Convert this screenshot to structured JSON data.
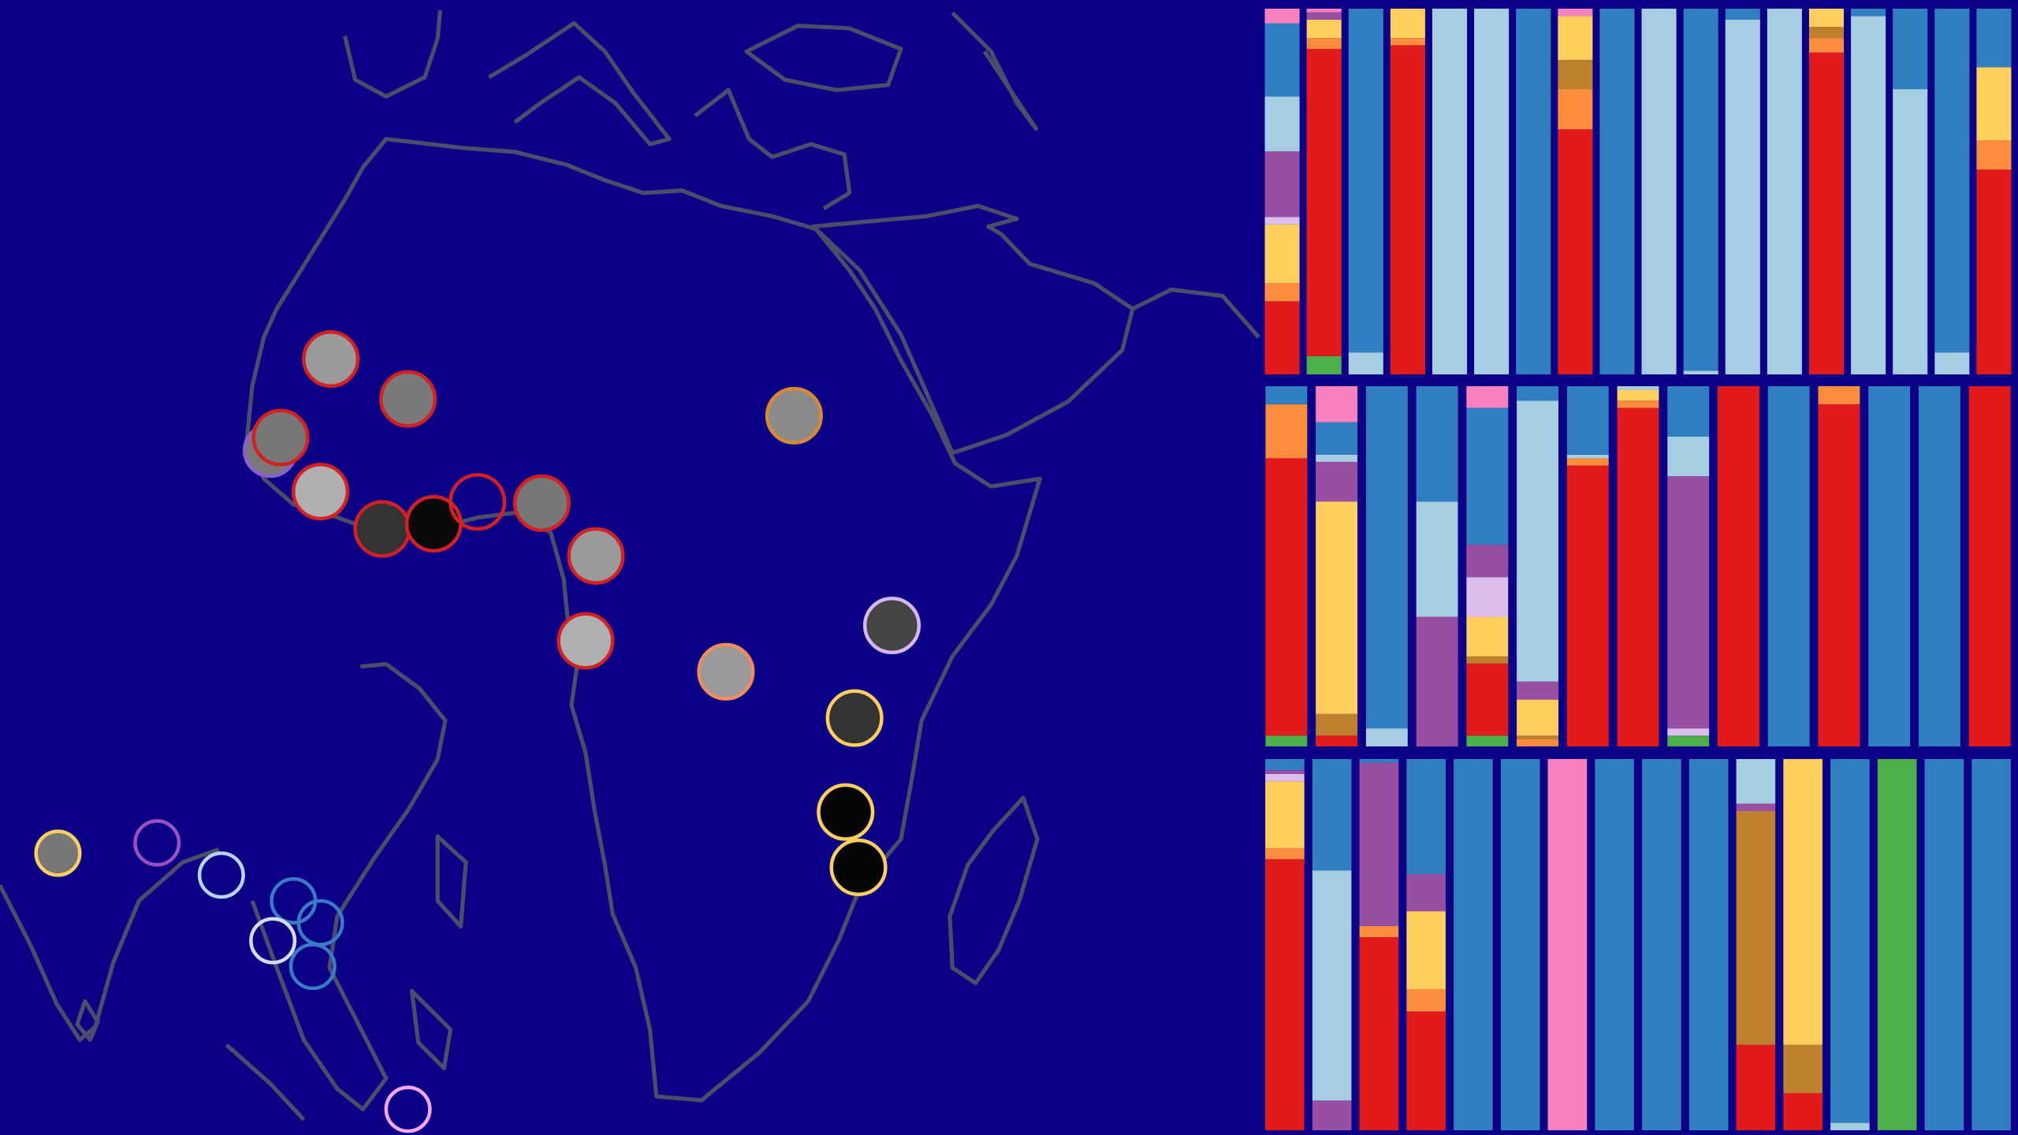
{
  "chart_data": [
    {
      "type": "bar",
      "stacked": true,
      "ylim": [
        0,
        100
      ],
      "categories": [
        null,
        null,
        null,
        null,
        null,
        null,
        null,
        null,
        null,
        null,
        null,
        null,
        null,
        null,
        null,
        null,
        null,
        null
      ],
      "series": [
        {
          "color": "#4daf4a",
          "values": [
            0,
            5,
            0,
            0,
            0,
            0,
            0,
            0,
            0,
            0,
            0,
            0,
            0,
            0,
            0,
            0,
            0,
            0
          ]
        },
        {
          "color": "#e31a1c",
          "values": [
            20,
            84,
            0,
            90,
            0,
            0,
            0,
            67,
            0,
            0,
            0,
            0,
            0,
            88,
            0,
            0,
            0,
            56
          ]
        },
        {
          "color": "#fd8d3c",
          "values": [
            5,
            3,
            0,
            2,
            0,
            0,
            0,
            11,
            0,
            0,
            0,
            0,
            0,
            4,
            0,
            0,
            0,
            8
          ]
        },
        {
          "color": "#bf812d",
          "values": [
            0,
            0,
            0,
            0,
            0,
            0,
            0,
            8,
            0,
            0,
            0,
            0,
            0,
            3,
            0,
            0,
            0,
            0
          ]
        },
        {
          "color": "#fecf5c",
          "values": [
            16,
            5,
            0,
            8,
            0,
            0,
            0,
            12,
            0,
            0,
            0,
            0,
            0,
            5,
            0,
            0,
            0,
            20
          ]
        },
        {
          "color": "#dcbfec",
          "values": [
            2,
            0,
            0,
            0,
            0,
            0,
            0,
            0,
            0,
            0,
            0,
            0,
            0,
            0,
            0,
            0,
            0,
            0
          ]
        },
        {
          "color": "#984ea3",
          "values": [
            18,
            2,
            0,
            0,
            0,
            0,
            0,
            0,
            0,
            0,
            0,
            0,
            0,
            0,
            0,
            0,
            0,
            0
          ]
        },
        {
          "color": "#a6cee3",
          "values": [
            15,
            0,
            6,
            0,
            100,
            100,
            0,
            0,
            0,
            100,
            1,
            97,
            100,
            0,
            98,
            78,
            6,
            0
          ]
        },
        {
          "color": "#2f7fc1",
          "values": [
            20,
            0,
            94,
            0,
            0,
            0,
            100,
            0,
            100,
            0,
            99,
            3,
            0,
            0,
            2,
            22,
            94,
            16
          ]
        },
        {
          "color": "#f781bf",
          "values": [
            4,
            1,
            0,
            0,
            0,
            0,
            0,
            2,
            0,
            0,
            0,
            0,
            0,
            0,
            0,
            0,
            0,
            0
          ]
        }
      ]
    },
    {
      "type": "bar",
      "stacked": true,
      "ylim": [
        0,
        100
      ],
      "categories": [
        null,
        null,
        null,
        null,
        null,
        null,
        null,
        null,
        null,
        null,
        null,
        null,
        null,
        null,
        null
      ],
      "series": [
        {
          "color": "#4daf4a",
          "values": [
            3,
            0,
            0,
            0,
            3,
            0,
            0,
            0,
            3,
            0,
            0,
            0,
            0,
            0,
            0
          ]
        },
        {
          "color": "#e31a1c",
          "values": [
            77,
            3,
            0,
            0,
            20,
            0,
            78,
            94,
            0,
            100,
            0,
            95,
            0,
            0,
            100
          ]
        },
        {
          "color": "#fd8d3c",
          "values": [
            15,
            0,
            0,
            0,
            0,
            2,
            2,
            2,
            0,
            0,
            0,
            5,
            0,
            0,
            0
          ]
        },
        {
          "color": "#bf812d",
          "values": [
            0,
            6,
            0,
            0,
            2,
            1,
            0,
            0,
            0,
            0,
            0,
            0,
            0,
            0,
            0
          ]
        },
        {
          "color": "#fecf5c",
          "values": [
            0,
            59,
            0,
            0,
            11,
            10,
            0,
            3,
            0,
            0,
            0,
            0,
            0,
            0,
            0
          ]
        },
        {
          "color": "#dcbfec",
          "values": [
            0,
            0,
            0,
            0,
            11,
            0,
            0,
            0,
            2,
            0,
            0,
            0,
            0,
            0,
            0
          ]
        },
        {
          "color": "#984ea3",
          "values": [
            0,
            11,
            0,
            36,
            9,
            5,
            0,
            0,
            70,
            0,
            0,
            0,
            0,
            0,
            0
          ]
        },
        {
          "color": "#a6cee3",
          "values": [
            0,
            2,
            5,
            32,
            0,
            78,
            1,
            1,
            11,
            0,
            0,
            0,
            0,
            0,
            0
          ]
        },
        {
          "color": "#2f7fc1",
          "values": [
            5,
            9,
            95,
            32,
            38,
            4,
            19,
            0,
            14,
            0,
            100,
            0,
            100,
            100,
            0
          ]
        },
        {
          "color": "#f781bf",
          "values": [
            0,
            10,
            0,
            0,
            6,
            0,
            0,
            0,
            0,
            0,
            0,
            0,
            0,
            0,
            0
          ]
        }
      ]
    },
    {
      "type": "bar",
      "stacked": true,
      "ylim": [
        0,
        100
      ],
      "categories": [
        null,
        null,
        null,
        null,
        null,
        null,
        null,
        null,
        null,
        null,
        null,
        null,
        null,
        null,
        null,
        null
      ],
      "series": [
        {
          "color": "#4daf4a",
          "values": [
            0,
            0,
            0,
            0,
            0,
            0,
            0,
            0,
            0,
            0,
            0,
            0,
            0,
            100,
            0,
            0
          ]
        },
        {
          "color": "#e31a1c",
          "values": [
            73,
            0,
            52,
            32,
            0,
            0,
            0,
            0,
            0,
            0,
            23,
            10,
            0,
            0,
            0,
            0
          ]
        },
        {
          "color": "#fd8d3c",
          "values": [
            3,
            0,
            3,
            6,
            0,
            0,
            0,
            0,
            0,
            0,
            0,
            0,
            0,
            0,
            0,
            0
          ]
        },
        {
          "color": "#bf812d",
          "values": [
            0,
            0,
            0,
            0,
            0,
            0,
            0,
            0,
            0,
            0,
            63,
            13,
            0,
            0,
            0,
            0
          ]
        },
        {
          "color": "#fecf5c",
          "values": [
            18,
            0,
            0,
            21,
            0,
            0,
            0,
            0,
            0,
            0,
            0,
            77,
            0,
            0,
            0,
            0
          ]
        },
        {
          "color": "#dcbfec",
          "values": [
            2,
            0,
            0,
            0,
            0,
            0,
            0,
            0,
            0,
            0,
            0,
            0,
            0,
            0,
            0,
            0
          ]
        },
        {
          "color": "#984ea3",
          "values": [
            1,
            8,
            44,
            10,
            0,
            0,
            0,
            0,
            0,
            0,
            2,
            0,
            0,
            0,
            0,
            0
          ]
        },
        {
          "color": "#a6cee3",
          "values": [
            0,
            62,
            0,
            0,
            0,
            0,
            0,
            0,
            0,
            0,
            12,
            0,
            2,
            0,
            0,
            0
          ]
        },
        {
          "color": "#2f7fc1",
          "values": [
            3,
            30,
            1,
            31,
            100,
            100,
            0,
            100,
            100,
            100,
            0,
            0,
            98,
            0,
            100,
            100
          ]
        },
        {
          "color": "#f781bf",
          "values": [
            0,
            0,
            0,
            0,
            0,
            0,
            100,
            0,
            0,
            0,
            0,
            0,
            0,
            0,
            0,
            0
          ]
        }
      ]
    }
  ]
}
